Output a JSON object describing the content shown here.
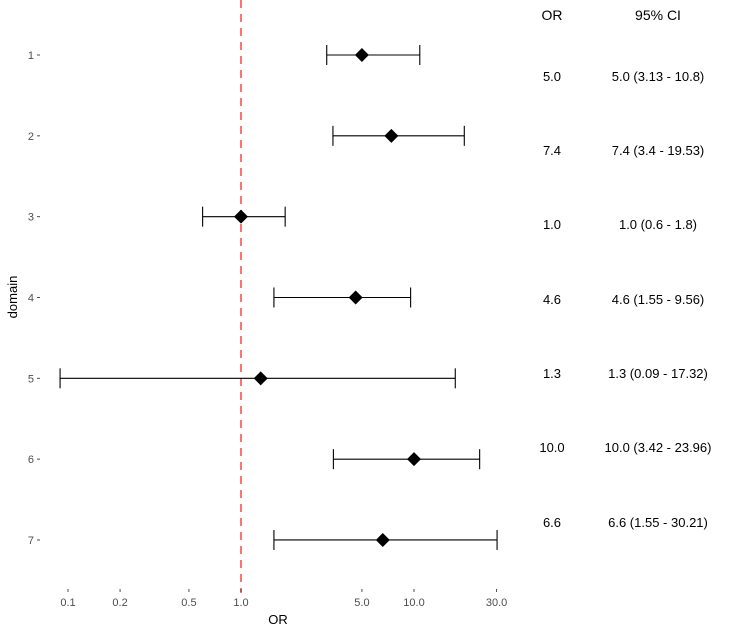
{
  "chart_data": {
    "type": "forest",
    "xlabel": "OR",
    "ylabel": "domain",
    "x_scale": "log",
    "xlim": [
      0.085,
      36
    ],
    "x_ticks": [
      0.1,
      0.2,
      0.5,
      1.0,
      5.0,
      10.0,
      30.0
    ],
    "x_tick_labels": [
      "0.1",
      "0.2",
      "0.5",
      "1.0",
      "5.0",
      "10.0",
      "30.0"
    ],
    "reference_line": 1.0,
    "reference_color": "#F8766D",
    "point_color": "#000000",
    "grid": false,
    "rows": [
      {
        "label": "1",
        "or": 5.0,
        "lo": 3.13,
        "hi": 10.8
      },
      {
        "label": "2",
        "or": 7.4,
        "lo": 3.4,
        "hi": 19.53
      },
      {
        "label": "3",
        "or": 1.0,
        "lo": 0.6,
        "hi": 1.8
      },
      {
        "label": "4",
        "or": 4.6,
        "lo": 1.55,
        "hi": 9.56
      },
      {
        "label": "5",
        "or": 1.3,
        "lo": 0.09,
        "hi": 17.32
      },
      {
        "label": "6",
        "or": 10.0,
        "lo": 3.42,
        "hi": 23.96
      },
      {
        "label": "7",
        "or": 6.6,
        "lo": 1.55,
        "hi": 30.21
      }
    ],
    "table": {
      "headers": [
        "OR",
        "95% CI"
      ],
      "or_text": [
        "5.0",
        "7.4",
        "1.0",
        "4.6",
        "1.3",
        "10.0",
        "6.6"
      ],
      "ci_text": [
        "5.0 (3.13 - 10.8)",
        "7.4 (3.4 - 19.53)",
        "1.0 (0.6 - 1.8)",
        "4.6 (1.55 - 9.56)",
        "1.3 (0.09 - 17.32)",
        "10.0 (3.42 - 23.96)",
        "6.6 (1.55 - 30.21)"
      ]
    }
  }
}
